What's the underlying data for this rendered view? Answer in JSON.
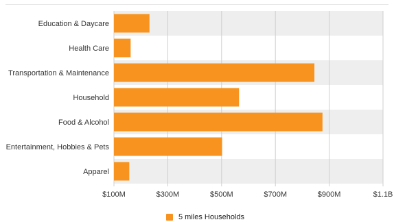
{
  "chart_data": {
    "type": "bar",
    "orientation": "horizontal",
    "categories": [
      "Education & Daycare",
      "Health Care",
      "Transportation & Maintenance",
      "Household",
      "Food & Alcohol",
      "Entertainment, Hobbies & Pets",
      "Apparel"
    ],
    "series": [
      {
        "name": "5 miles Households",
        "values": [
          232,
          162,
          845,
          565,
          875,
          502,
          157
        ],
        "color": "#f7931e"
      }
    ],
    "x_ticks": [
      "$100M",
      "$300M",
      "$500M",
      "$700M",
      "$900M",
      "$1.1B"
    ],
    "x_tick_values": [
      100,
      300,
      500,
      700,
      900,
      1100
    ],
    "xlim": [
      100,
      1100
    ],
    "unit": "$M",
    "grid": true,
    "legend_position": "bottom-center",
    "band_colors": [
      "#eeeeee",
      "#ffffff"
    ]
  }
}
